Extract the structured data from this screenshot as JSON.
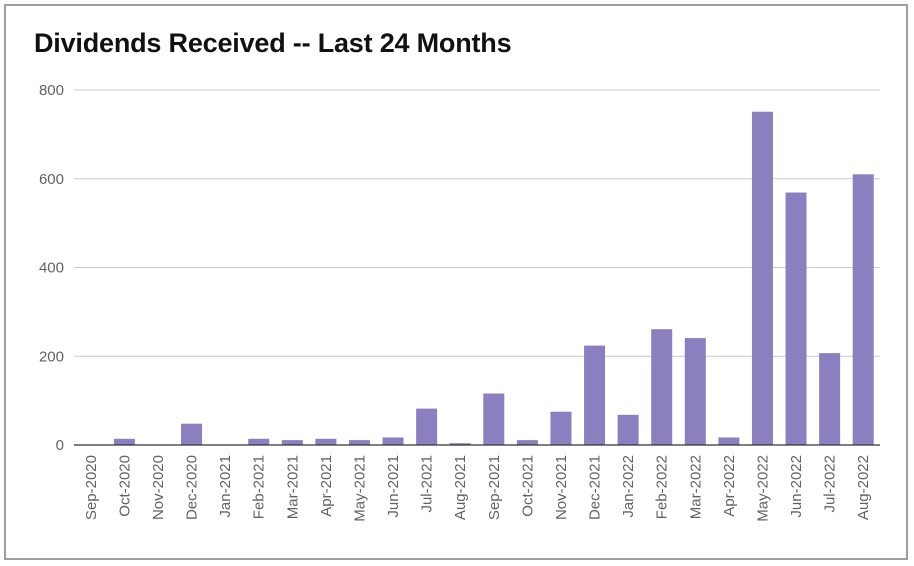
{
  "chart_data": {
    "type": "bar",
    "title": "Dividends Received -- Last 24 Months",
    "xlabel": "",
    "ylabel": "",
    "ylim": [
      0,
      800
    ],
    "yticks": [
      "0",
      "200",
      "400",
      "600",
      "800"
    ],
    "grid": true,
    "legend": "none",
    "bar_color": "#8b7fbf",
    "categories": [
      "Sep-2020",
      "Oct-2020",
      "Nov-2020",
      "Dec-2020",
      "Jan-2021",
      "Feb-2021",
      "Mar-2021",
      "Apr-2021",
      "May-2021",
      "Jun-2021",
      "Jul-2021",
      "Aug-2021",
      "Sep-2021",
      "Oct-2021",
      "Nov-2021",
      "Dec-2021",
      "Jan-2022",
      "Feb-2022",
      "Mar-2022",
      "Apr-2022",
      "May-2022",
      "Jun-2022",
      "Jul-2022",
      "Aug-2022"
    ],
    "values": [
      0,
      14,
      1,
      48,
      0,
      14,
      11,
      14,
      11,
      17,
      82,
      4,
      116,
      11,
      75,
      224,
      68,
      261,
      241,
      17,
      751,
      569,
      207,
      610
    ]
  }
}
